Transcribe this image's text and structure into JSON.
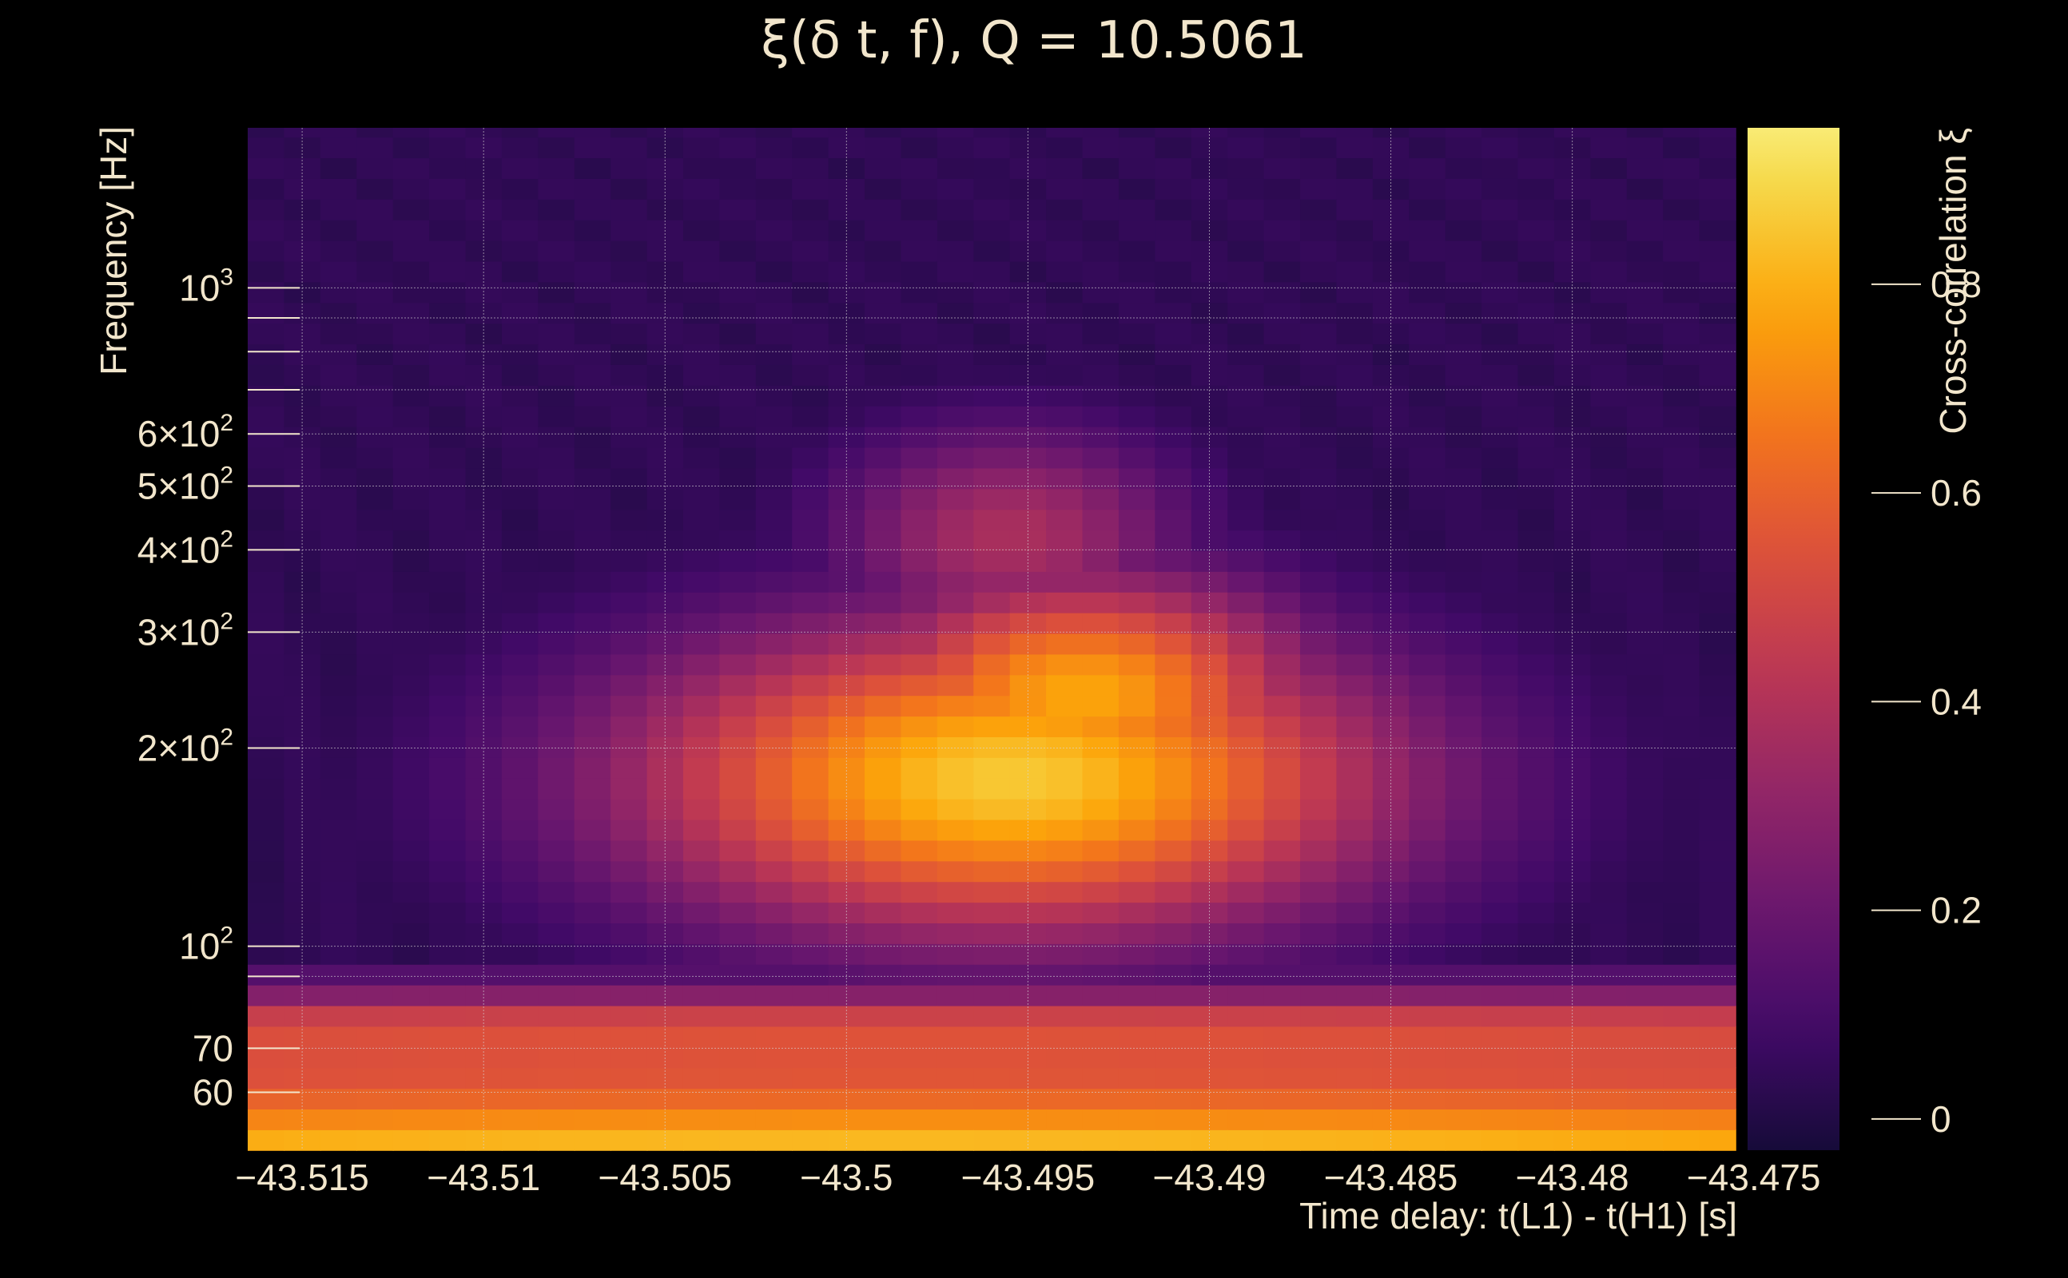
{
  "chart_data": {
    "type": "heatmap",
    "title": "ξ(δ t, f), Q = 10.5061",
    "xlabel": "Time delay: t(L1) - t(H1) [s]",
    "ylabel": "Frequency [Hz]",
    "colorbar_label": "Cross-correlation ξ",
    "colormap": "inferno",
    "xlim": [
      -43.5165,
      -43.4755
    ],
    "ylim": [
      49,
      1750
    ],
    "yscale": "log",
    "grid": true,
    "x_ticks": [
      -43.515,
      -43.51,
      -43.505,
      -43.5,
      -43.495,
      -43.49,
      -43.485,
      -43.48,
      -43.475
    ],
    "x_tick_labels": [
      "−43.515",
      "−43.51",
      "−43.505",
      "−43.5",
      "−43.495",
      "−43.49",
      "−43.485",
      "−43.48",
      "−43.475"
    ],
    "y_ticks": [
      {
        "value": 60,
        "label": "60"
      },
      {
        "value": 70,
        "label": "70"
      },
      {
        "value": 100,
        "label": "10",
        "sup": "2"
      },
      {
        "value": 200,
        "label": "2×10",
        "sup": "2"
      },
      {
        "value": 300,
        "label": "3×10",
        "sup": "2"
      },
      {
        "value": 400,
        "label": "4×10",
        "sup": "2"
      },
      {
        "value": 500,
        "label": "5×10",
        "sup": "2"
      },
      {
        "value": 600,
        "label": "6×10",
        "sup": "2"
      },
      {
        "value": 1000,
        "label": "10",
        "sup": "3"
      }
    ],
    "y_minor_grid": [
      90,
      700,
      800,
      900
    ],
    "colorbar_range": [
      -0.03,
      0.95
    ],
    "colorbar_ticks": [
      {
        "value": 0,
        "label": "0"
      },
      {
        "value": 0.2,
        "label": "0.2"
      },
      {
        "value": 0.4,
        "label": "0.4"
      },
      {
        "value": 0.6,
        "label": "0.6"
      },
      {
        "value": 0.8,
        "label": "0.8"
      }
    ],
    "features": [
      {
        "name": "low-frequency band",
        "t_center": -43.4985,
        "t_width": 0.06,
        "t_slope": -6,
        "f_bands": [
          [
            49,
            54,
            0.82
          ],
          [
            54,
            58,
            0.72
          ],
          [
            58,
            62,
            0.62
          ],
          [
            62,
            66,
            0.56
          ],
          [
            66,
            70,
            0.55
          ],
          [
            70,
            76,
            0.55
          ],
          [
            76,
            82,
            0.48
          ],
          [
            82,
            88,
            0.28
          ],
          [
            88,
            94,
            0.14
          ]
        ]
      },
      {
        "name": "main chirp blob",
        "t_center": -43.4955,
        "t_sigma": 0.0075,
        "f_center": 180,
        "f_sigma": 0.17,
        "peak": 0.86
      },
      {
        "name": "upper arc",
        "t_center": -43.4935,
        "t_sigma": 0.0045,
        "f_center": 240,
        "f_sigma": 0.13,
        "peak": 0.78
      },
      {
        "name": "secondary blob",
        "t_center": -43.4955,
        "t_sigma": 0.0035,
        "f_center": 420,
        "f_sigma": 0.12,
        "peak": 0.38
      }
    ]
  }
}
